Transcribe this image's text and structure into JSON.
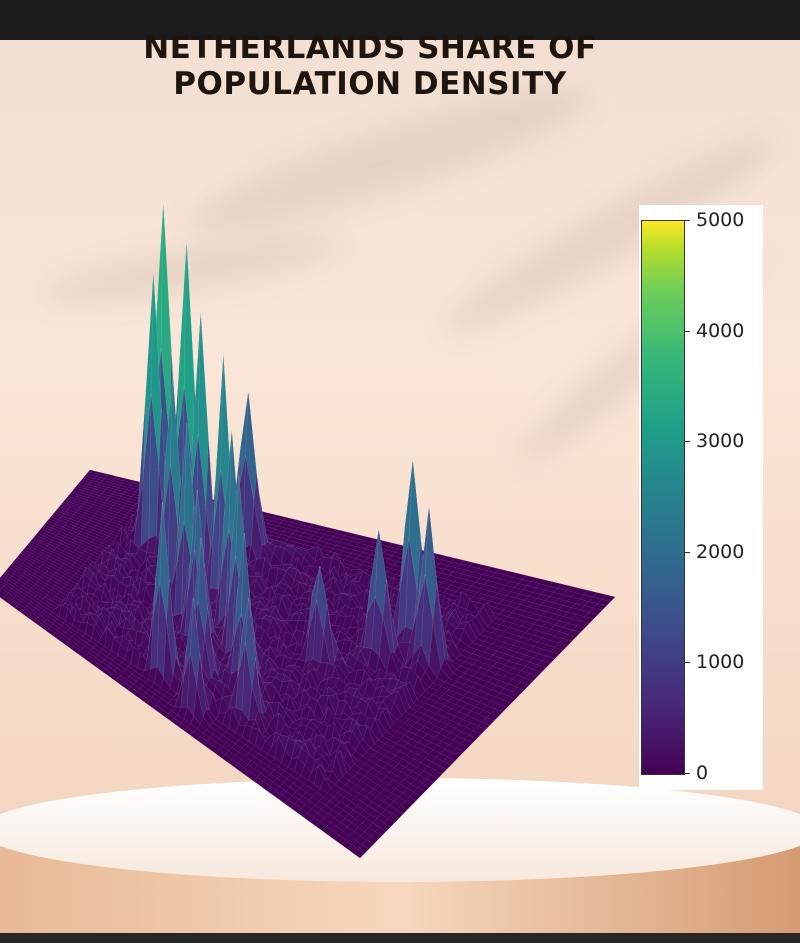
{
  "chart_data": {
    "type": "surface3d",
    "title_lines": [
      "NETHERLANDS SHARE OF",
      "POPULATION DENSITY"
    ],
    "colormap": "viridis",
    "zlim": [
      0,
      5000
    ],
    "colorbar_ticks": [
      0,
      1000,
      2000,
      3000,
      4000,
      5000
    ],
    "colorbar_labels": [
      "0",
      "1000",
      "2000",
      "3000",
      "4000",
      "5000"
    ],
    "grid_size": [
      60,
      60
    ],
    "peaks": [
      {
        "row": 44,
        "col": 12,
        "value": 5000
      },
      {
        "row": 40,
        "col": 16,
        "value": 4700
      },
      {
        "row": 36,
        "col": 13,
        "value": 4200
      },
      {
        "row": 33,
        "col": 20,
        "value": 3900
      },
      {
        "row": 30,
        "col": 24,
        "value": 3600
      },
      {
        "row": 28,
        "col": 18,
        "value": 3300
      },
      {
        "row": 25,
        "col": 27,
        "value": 2900
      },
      {
        "row": 22,
        "col": 22,
        "value": 3000
      },
      {
        "row": 20,
        "col": 30,
        "value": 2700
      },
      {
        "row": 18,
        "col": 25,
        "value": 2400
      },
      {
        "row": 15,
        "col": 33,
        "value": 2200
      },
      {
        "row": 12,
        "col": 28,
        "value": 2000
      },
      {
        "row": 10,
        "col": 36,
        "value": 1800
      },
      {
        "row": 38,
        "col": 45,
        "value": 2800
      },
      {
        "row": 36,
        "col": 48,
        "value": 2300
      },
      {
        "row": 33,
        "col": 43,
        "value": 1900
      },
      {
        "row": 8,
        "col": 24,
        "value": 2600
      },
      {
        "row": 5,
        "col": 30,
        "value": 1700
      },
      {
        "row": 27,
        "col": 38,
        "value": 1500
      },
      {
        "row": 45,
        "col": 22,
        "value": 2500
      }
    ]
  }
}
